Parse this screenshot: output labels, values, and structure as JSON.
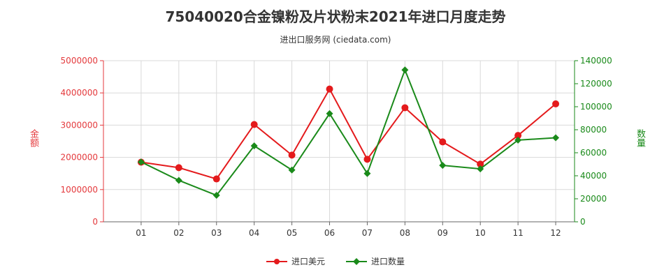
{
  "header": {
    "title": "75040020合金镍粉及片状粉末2021年进口月度走势",
    "subtitle": "进出口服务网 (ciedata.com)"
  },
  "chart_data": {
    "type": "line",
    "categories": [
      "01",
      "02",
      "03",
      "04",
      "05",
      "06",
      "07",
      "08",
      "09",
      "10",
      "11",
      "12"
    ],
    "series": [
      {
        "name": "进口美元",
        "axis": "left",
        "color": "#e41a1c",
        "values": [
          1850000,
          1680000,
          1330000,
          3020000,
          2070000,
          4120000,
          1940000,
          3540000,
          2480000,
          1790000,
          2680000,
          3660000
        ]
      },
      {
        "name": "进口数量",
        "axis": "right",
        "color": "#1a8a1a",
        "values": [
          52000,
          36000,
          23000,
          66000,
          45000,
          94000,
          42000,
          132000,
          49000,
          46000,
          71000,
          73000
        ]
      }
    ],
    "ylabel_left": "金额",
    "ylabel_right": "数量",
    "ylim_left": [
      0,
      5000000
    ],
    "yticks_left": [
      "0",
      "1000000",
      "2000000",
      "3000000",
      "4000000",
      "5000000"
    ],
    "ylim_right": [
      0,
      140000
    ],
    "yticks_right": [
      "0",
      "20000",
      "40000",
      "60000",
      "80000",
      "100000",
      "120000",
      "140000"
    ],
    "grid": true,
    "legend_position": "bottom",
    "colors": {
      "left_axis": "#e4393c",
      "right_axis": "#1a8a1a",
      "grid": "#d9d9d9"
    }
  }
}
